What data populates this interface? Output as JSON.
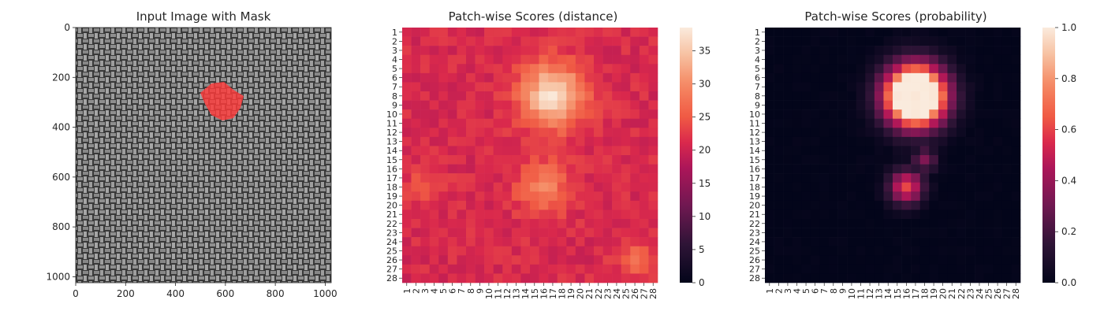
{
  "chart_data": [
    {
      "type": "image",
      "title": "Input Image with Mask",
      "xlim": [
        0,
        1024
      ],
      "ylim": [
        0,
        1024
      ],
      "xticks": [
        0,
        200,
        400,
        600,
        800,
        1000
      ],
      "yticks": [
        0,
        200,
        400,
        600,
        800,
        1000
      ],
      "mask": {
        "center_x": 565,
        "center_y": 275,
        "color": "#ff3b3b"
      }
    },
    {
      "type": "heatmap",
      "title": "Patch-wise Scores (distance)",
      "grid_size": 28,
      "row_labels": [
        "1",
        "2",
        "3",
        "4",
        "5",
        "6",
        "7",
        "8",
        "9",
        "10",
        "11",
        "12",
        "13",
        "14",
        "15",
        "16",
        "17",
        "18",
        "19",
        "20",
        "21",
        "22",
        "23",
        "24",
        "25",
        "26",
        "27",
        "28"
      ],
      "col_labels": [
        "1",
        "2",
        "3",
        "4",
        "5",
        "6",
        "7",
        "8",
        "9",
        "10",
        "11",
        "12",
        "13",
        "14",
        "15",
        "16",
        "17",
        "18",
        "19",
        "20",
        "21",
        "22",
        "23",
        "24",
        "25",
        "26",
        "27",
        "28"
      ],
      "colorbar_range": [
        0,
        38.5
      ],
      "colorbar_ticks": [
        "0",
        "5",
        "10",
        "15",
        "20",
        "25",
        "30",
        "35"
      ],
      "colormap": "rocket",
      "baseline": 21,
      "hotspots": [
        {
          "row": 8,
          "col": 17,
          "peak": 38,
          "spread": 2.4
        },
        {
          "row": 18,
          "col": 16,
          "peak": 29,
          "spread": 2.0
        },
        {
          "row": 26,
          "col": 26,
          "peak": 27,
          "spread": 1.3
        },
        {
          "row": 18,
          "col": 3,
          "peak": 25,
          "spread": 1.4
        }
      ]
    },
    {
      "type": "heatmap",
      "title": "Patch-wise Scores (probability)",
      "grid_size": 28,
      "row_labels": [
        "1",
        "2",
        "3",
        "4",
        "5",
        "6",
        "7",
        "8",
        "9",
        "10",
        "11",
        "12",
        "13",
        "14",
        "15",
        "16",
        "17",
        "18",
        "19",
        "20",
        "21",
        "22",
        "23",
        "24",
        "25",
        "26",
        "27",
        "28"
      ],
      "col_labels": [
        "1",
        "2",
        "3",
        "4",
        "5",
        "6",
        "7",
        "8",
        "9",
        "10",
        "11",
        "12",
        "13",
        "14",
        "15",
        "16",
        "17",
        "18",
        "19",
        "20",
        "21",
        "22",
        "23",
        "24",
        "25",
        "26",
        "27",
        "28"
      ],
      "colorbar_range": [
        0,
        1
      ],
      "colorbar_ticks": [
        "0.0",
        "0.2",
        "0.4",
        "0.6",
        "0.8",
        "1.0"
      ],
      "colormap": "rocket",
      "baseline": 0,
      "hotspots": [
        {
          "row": 8,
          "col": 17,
          "peak": 1.0,
          "spread": 2.3,
          "core": true
        },
        {
          "row": 18,
          "col": 16,
          "peak": 0.62,
          "spread": 1.3
        },
        {
          "row": 15,
          "col": 18,
          "peak": 0.35,
          "spread": 0.9
        }
      ]
    }
  ]
}
